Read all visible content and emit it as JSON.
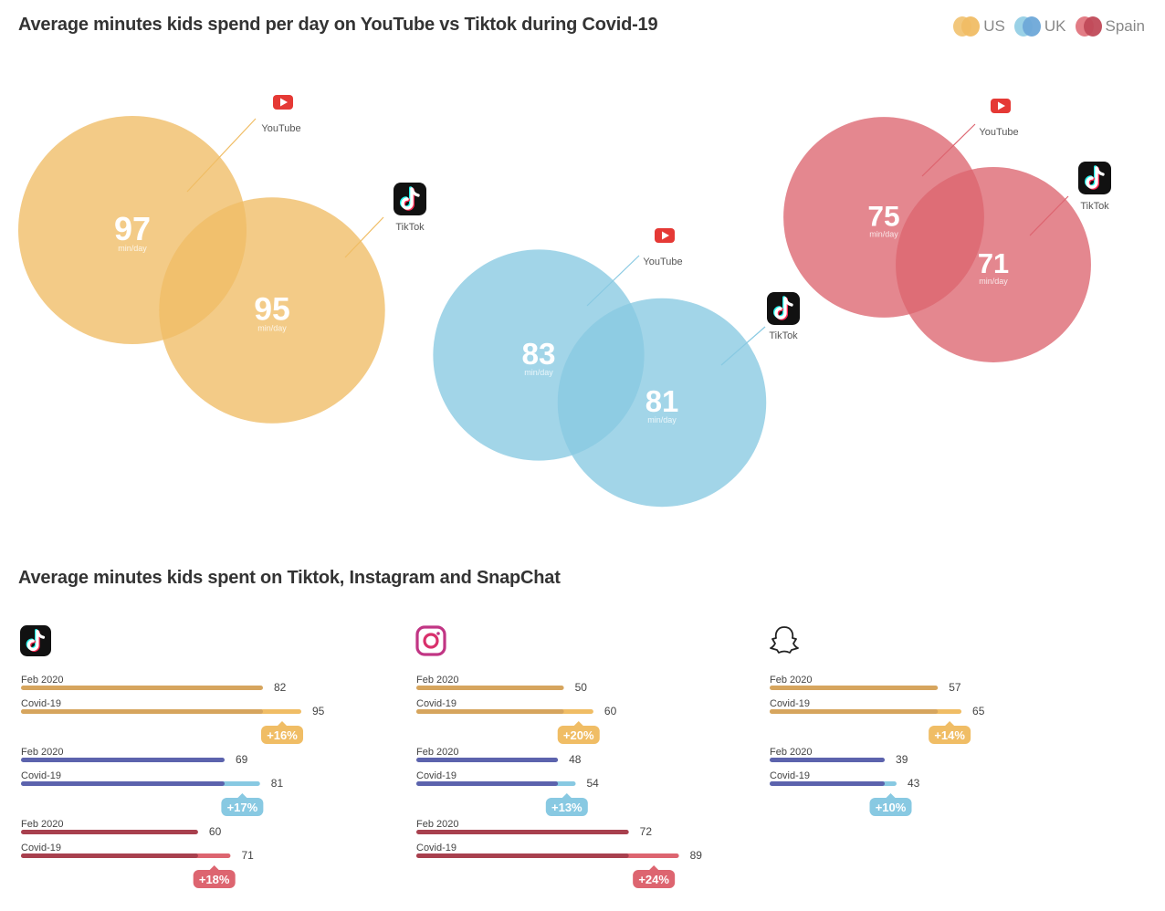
{
  "titles": {
    "top": "Average minutes kids spend per day on YouTube vs Tiktok during Covid-19",
    "bottom": "Average minutes kids spent on Tiktok, Instagram and SnapChat"
  },
  "legend": [
    {
      "label": "US",
      "color": "#f0bd65"
    },
    {
      "label": "UK",
      "color": "#88c9e2"
    },
    {
      "label": "Spain",
      "color": "#dd6570"
    }
  ],
  "colors": {
    "us": "#f0bd65",
    "uk": "#88c9e2",
    "spain": "#dd6570",
    "us_bar_base": "#d6a55e",
    "uk_bar_base": "#5c63ad",
    "spain_bar_base": "#a8404e",
    "youtube_red": "#e53935",
    "tiktok_black": "#111111"
  },
  "chart_data": [
    {
      "type": "bubble",
      "title": "Average minutes kids spend per day on YouTube vs Tiktok during Covid-19",
      "unit": "min/day",
      "series": [
        {
          "name": "US",
          "youtube": 97,
          "tiktok": 95
        },
        {
          "name": "UK",
          "youtube": 83,
          "tiktok": 81
        },
        {
          "name": "Spain",
          "youtube": 75,
          "tiktok": 71
        }
      ],
      "platform_labels": [
        "YouTube",
        "TikTok"
      ]
    },
    {
      "type": "bar",
      "title": "Average minutes kids spent on Tiktok, Instagram and SnapChat",
      "xlim": [
        0,
        100
      ],
      "period_labels": [
        "Feb 2020",
        "Covid-19"
      ],
      "groups": [
        {
          "platform": "TikTok",
          "icon": "tiktok-icon",
          "rows": [
            {
              "country": "US",
              "feb": 82,
              "covid": 95,
              "change": "+16%"
            },
            {
              "country": "UK",
              "feb": 69,
              "covid": 81,
              "change": "+17%"
            },
            {
              "country": "Spain",
              "feb": 60,
              "covid": 71,
              "change": "+18%"
            }
          ]
        },
        {
          "platform": "Instagram",
          "icon": "instagram-icon",
          "rows": [
            {
              "country": "US",
              "feb": 50,
              "covid": 60,
              "change": "+20%"
            },
            {
              "country": "UK",
              "feb": 48,
              "covid": 54,
              "change": "+13%"
            },
            {
              "country": "Spain",
              "feb": 72,
              "covid": 89,
              "change": "+24%"
            }
          ]
        },
        {
          "platform": "SnapChat",
          "icon": "snapchat-icon",
          "rows": [
            {
              "country": "US",
              "feb": 57,
              "covid": 65,
              "change": "+14%"
            },
            {
              "country": "UK",
              "feb": 39,
              "covid": 43,
              "change": "+10%"
            }
          ]
        }
      ]
    }
  ]
}
